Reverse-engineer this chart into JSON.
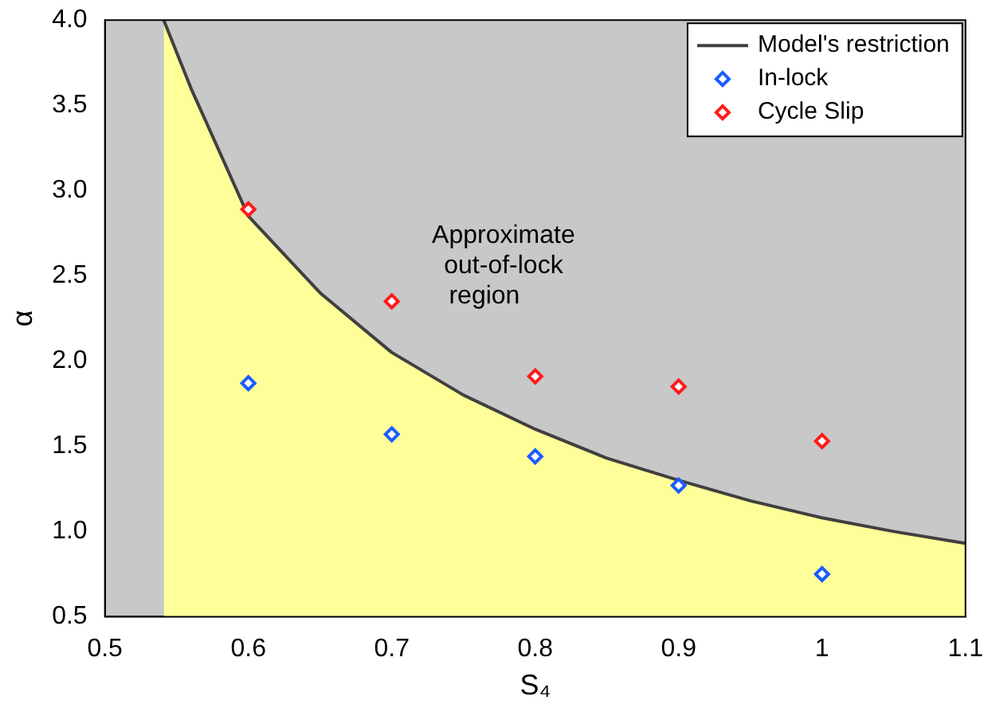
{
  "chart_data": {
    "type": "scatter",
    "xlabel": "S₄",
    "ylabel": "α",
    "xlim": [
      0.5,
      1.1
    ],
    "ylim": [
      0.5,
      4.0
    ],
    "xticks": [
      0.5,
      0.6,
      0.7,
      0.8,
      0.9,
      1,
      1.1
    ],
    "yticks": [
      {
        "value": 0.5,
        "label": "0.5"
      },
      {
        "value": 1,
        "label": "1.0"
      },
      {
        "value": 1.5,
        "label": "1.5"
      },
      {
        "value": 2,
        "label": "2.0"
      },
      {
        "value": 2.5,
        "label": "2.5"
      },
      {
        "value": 3,
        "label": "3.0"
      },
      {
        "value": 3.5,
        "label": "3.5"
      },
      {
        "value": 4,
        "label": "4.0"
      }
    ],
    "grid": false,
    "legend": "top right",
    "annotations": [
      "Approximate\nout-of-lock\nregion"
    ],
    "series": [
      {
        "name": "Model's restriction",
        "type": "area",
        "marker": "none",
        "color": "#404040",
        "x": [
          0.541,
          0.56,
          0.6,
          0.65,
          0.7,
          0.75,
          0.8,
          0.85,
          0.9,
          0.95,
          1.0,
          1.05,
          1.1
        ],
        "values": [
          4.0,
          3.6,
          2.85,
          2.4,
          2.05,
          1.8,
          1.6,
          1.43,
          1.3,
          1.18,
          1.08,
          1.0,
          0.93
        ]
      },
      {
        "name": "In-lock",
        "marker": "diamond",
        "color": "#1a5cff",
        "x": [
          0.6,
          0.7,
          0.8,
          0.9,
          1.0
        ],
        "values": [
          1.87,
          1.57,
          1.44,
          1.27,
          0.75
        ]
      },
      {
        "name": "Cycle Slip",
        "marker": "diamond",
        "color": "#ff1a1a",
        "x": [
          0.6,
          0.7,
          0.8,
          0.9,
          1.0
        ],
        "values": [
          2.89,
          2.35,
          1.91,
          1.85,
          1.53
        ]
      }
    ]
  }
}
